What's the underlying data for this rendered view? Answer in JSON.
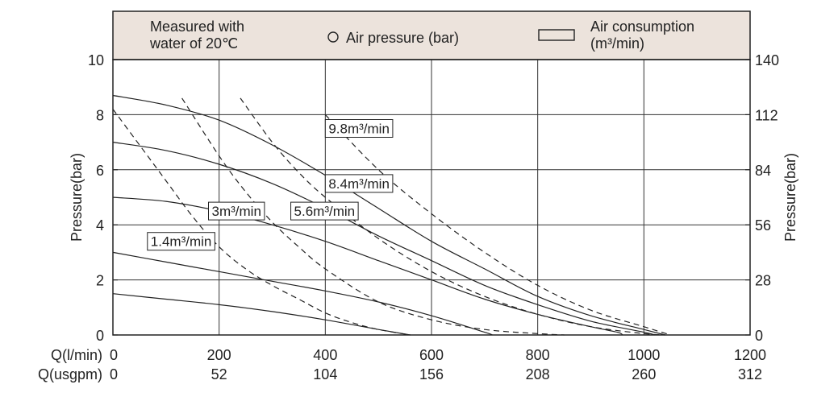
{
  "chart_data": {
    "type": "line",
    "legend": {
      "condition": [
        "Measured with",
        "water of 20℃"
      ],
      "pressure": "Air pressure (bar)",
      "consumption": [
        "Air consumption",
        "(m³/min)"
      ]
    },
    "y_left": {
      "label": "Pressure(bar)",
      "range": [
        0,
        10
      ],
      "ticks": [
        "0",
        "2",
        "4",
        "6",
        "8",
        "10"
      ]
    },
    "y_right": {
      "label": "Pressure(bar)",
      "range": [
        0,
        140
      ],
      "ticks": [
        "0",
        "28",
        "56",
        "84",
        "112",
        "140"
      ]
    },
    "x_primary": {
      "label": "Q(l/min)",
      "range": [
        0,
        1200
      ],
      "ticks": [
        "0",
        "200",
        "400",
        "600",
        "800",
        "1000",
        "1200"
      ]
    },
    "x_secondary": {
      "label": "Q(usgpm)",
      "ticks": [
        "0",
        "52",
        "104",
        "156",
        "208",
        "260",
        "312"
      ]
    },
    "grid": true,
    "pressure_series": [
      {
        "points": [
          [
            0,
            1.5
          ],
          [
            100,
            1.3
          ],
          [
            200,
            1.1
          ],
          [
            300,
            0.85
          ],
          [
            400,
            0.55
          ],
          [
            500,
            0.2
          ],
          [
            560,
            0
          ]
        ]
      },
      {
        "points": [
          [
            0,
            3.0
          ],
          [
            100,
            2.65
          ],
          [
            200,
            2.3
          ],
          [
            300,
            1.95
          ],
          [
            400,
            1.6
          ],
          [
            500,
            1.2
          ],
          [
            600,
            0.7
          ],
          [
            700,
            0.1
          ],
          [
            715,
            0
          ]
        ]
      },
      {
        "points": [
          [
            0,
            5.0
          ],
          [
            100,
            4.85
          ],
          [
            200,
            4.5
          ],
          [
            300,
            4.0
          ],
          [
            400,
            3.4
          ],
          [
            500,
            2.7
          ],
          [
            600,
            2.0
          ],
          [
            700,
            1.3
          ],
          [
            800,
            0.75
          ],
          [
            900,
            0.3
          ],
          [
            950,
            0.1
          ],
          [
            960,
            0
          ]
        ]
      },
      {
        "points": [
          [
            0,
            7.0
          ],
          [
            100,
            6.7
          ],
          [
            200,
            6.2
          ],
          [
            300,
            5.5
          ],
          [
            400,
            4.6
          ],
          [
            500,
            3.6
          ],
          [
            600,
            2.7
          ],
          [
            700,
            1.8
          ],
          [
            800,
            1.1
          ],
          [
            900,
            0.5
          ],
          [
            1000,
            0.1
          ],
          [
            1020,
            0
          ]
        ]
      },
      {
        "points": [
          [
            0,
            8.7
          ],
          [
            100,
            8.35
          ],
          [
            200,
            7.8
          ],
          [
            300,
            6.9
          ],
          [
            400,
            5.8
          ],
          [
            500,
            4.6
          ],
          [
            600,
            3.4
          ],
          [
            700,
            2.4
          ],
          [
            800,
            1.4
          ],
          [
            900,
            0.7
          ],
          [
            1000,
            0.2
          ],
          [
            1040,
            0
          ]
        ]
      }
    ],
    "consumption_series": [
      {
        "label": "1.4m³/min",
        "points": [
          [
            0,
            8.2
          ],
          [
            50,
            6.9
          ],
          [
            100,
            5.6
          ],
          [
            150,
            4.3
          ],
          [
            200,
            3.2
          ],
          [
            250,
            2.4
          ],
          [
            300,
            1.8
          ],
          [
            350,
            1.3
          ],
          [
            400,
            0.8
          ],
          [
            450,
            0.45
          ],
          [
            500,
            0.2
          ],
          [
            560,
            0
          ]
        ]
      },
      {
        "label": "3m³/min",
        "points": [
          [
            130,
            8.6
          ],
          [
            200,
            6.5
          ],
          [
            250,
            5.2
          ],
          [
            300,
            4.1
          ],
          [
            350,
            3.2
          ],
          [
            400,
            2.4
          ],
          [
            500,
            1.2
          ],
          [
            600,
            0.55
          ],
          [
            700,
            0.2
          ],
          [
            800,
            0.05
          ],
          [
            850,
            0
          ]
        ]
      },
      {
        "label": "5.6m³/min",
        "points": [
          [
            240,
            8.6
          ],
          [
            300,
            7.0
          ],
          [
            350,
            5.9
          ],
          [
            400,
            5.0
          ],
          [
            500,
            3.5
          ],
          [
            600,
            2.3
          ],
          [
            700,
            1.4
          ],
          [
            800,
            0.75
          ],
          [
            900,
            0.3
          ],
          [
            1000,
            0.05
          ],
          [
            1040,
            0
          ]
        ]
      },
      {
        "label": "8.4m³/min",
        "points": [
          [
            400,
            8.0
          ],
          [
            500,
            6.0
          ],
          [
            600,
            4.4
          ],
          [
            700,
            3.0
          ],
          [
            800,
            1.8
          ],
          [
            900,
            0.9
          ],
          [
            1000,
            0.3
          ],
          [
            1050,
            0
          ]
        ]
      },
      {
        "label": "9.8m³/min",
        "points": []
      }
    ],
    "annotations": [
      {
        "text": "9.8m³/min",
        "x": 400,
        "y": 7.5
      },
      {
        "text": "8.4m³/min",
        "x": 400,
        "y": 5.5
      },
      {
        "text": "3m³/min",
        "x": 180,
        "y": 4.5
      },
      {
        "text": "5.6m³/min",
        "x": 335,
        "y": 4.5
      },
      {
        "text": "1.4m³/min",
        "x": 65,
        "y": 3.4
      }
    ]
  }
}
